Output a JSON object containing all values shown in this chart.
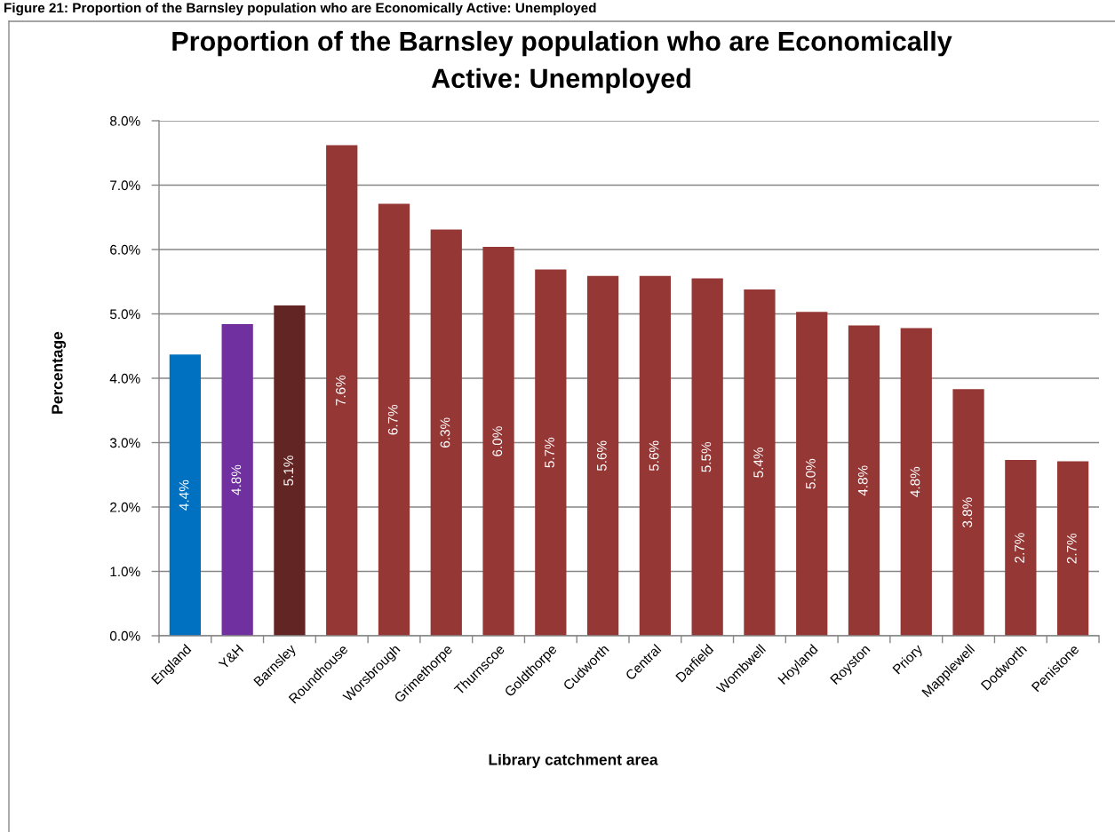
{
  "chart_data": {
    "type": "bar",
    "title": "Proportion of the Barnsley population who are Economically\nActive: Unemployed",
    "xlabel": "Library catchment area",
    "ylabel": "Percentage",
    "annotations": [
      "Figure 21: Proportion of the Barnsley population who are Economically Active: Unemployed"
    ],
    "categories": [
      "England",
      "Y&H",
      "Barnsley",
      "Roundhouse",
      "Worsbrough",
      "Grimethorpe",
      "Thurnscoe",
      "Goldthorpe",
      "Cudworth",
      "Central",
      "Darfield",
      "Wombwell",
      "Hoyland",
      "Royston",
      "Priory",
      "Mapplewell",
      "Dodworth",
      "Penistone"
    ],
    "values": [
      4.37,
      4.84,
      5.13,
      7.62,
      6.71,
      6.31,
      6.04,
      5.69,
      5.59,
      5.59,
      5.55,
      5.38,
      5.03,
      4.82,
      4.78,
      3.83,
      2.73,
      2.71
    ],
    "value_labels": [
      "4.4%",
      "4.8%",
      "5.1%",
      "7.6%",
      "6.7%",
      "6.3%",
      "6.0%",
      "5.7%",
      "5.6%",
      "5.6%",
      "5.5%",
      "5.4%",
      "5.0%",
      "4.8%",
      "4.8%",
      "3.8%",
      "2.7%",
      "2.7%"
    ],
    "colors": [
      "#0070c0",
      "#7030a0",
      "#632523",
      "#953735",
      "#953735",
      "#953735",
      "#953735",
      "#953735",
      "#953735",
      "#953735",
      "#953735",
      "#953735",
      "#953735",
      "#953735",
      "#953735",
      "#953735",
      "#953735",
      "#953735"
    ],
    "ylim": [
      0,
      8
    ],
    "yticks": [
      {
        "value": 0,
        "label": "0.0%"
      },
      {
        "value": 1,
        "label": "1.0%"
      },
      {
        "value": 2,
        "label": "2.0%"
      },
      {
        "value": 3,
        "label": "3.0%"
      },
      {
        "value": 4,
        "label": "4.0%"
      },
      {
        "value": 5,
        "label": "5.0%"
      },
      {
        "value": 6,
        "label": "6.0%"
      },
      {
        "value": 7,
        "label": "7.0%"
      },
      {
        "value": 8,
        "label": "8.0%"
      }
    ],
    "grid": "y"
  }
}
